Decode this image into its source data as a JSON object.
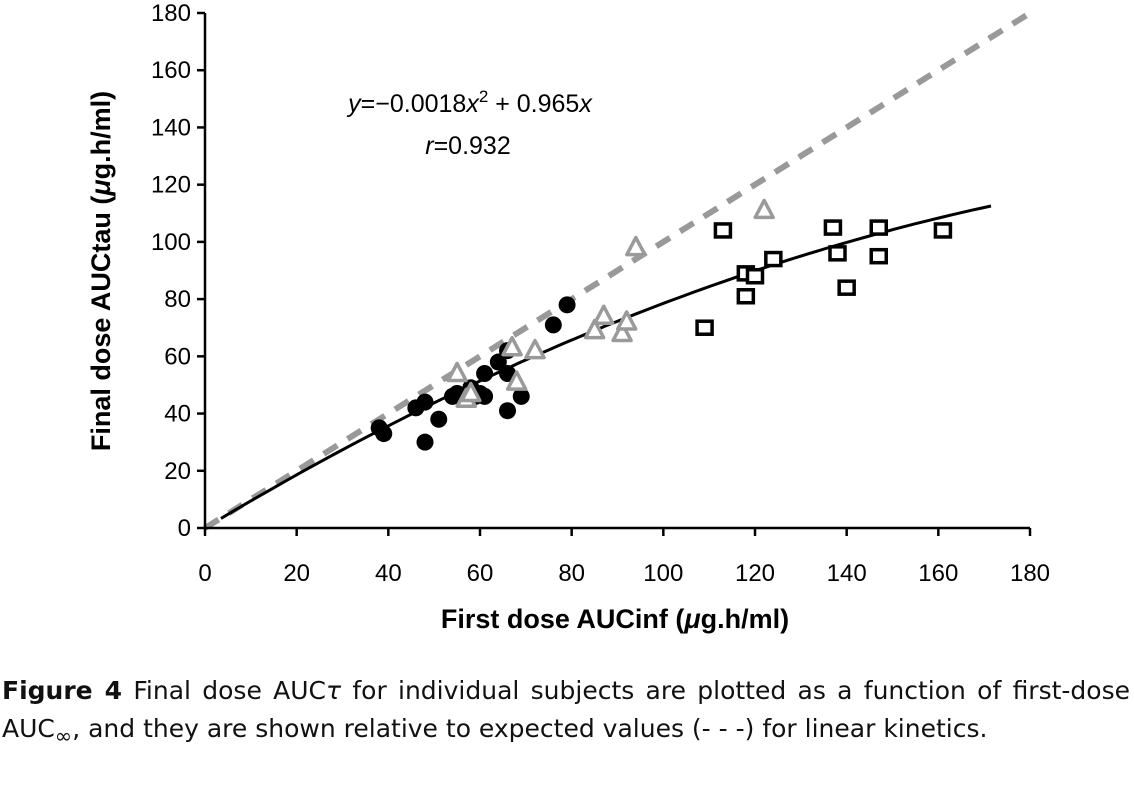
{
  "chart_data": {
    "type": "scatter",
    "xlabel_prefix": "First dose AUCinf (",
    "xlabel_mu": "μ",
    "xlabel_suffix": "g.h/ml)",
    "ylabel_prefix": "Final dose AUCtau (",
    "ylabel_mu": "μ",
    "ylabel_suffix": "g.h/ml)",
    "xlim": [
      0,
      180
    ],
    "ylim": [
      0,
      180
    ],
    "xticks": [
      0,
      20,
      40,
      60,
      80,
      100,
      120,
      140,
      160,
      180
    ],
    "yticks": [
      0,
      20,
      40,
      60,
      80,
      100,
      120,
      140,
      160,
      180
    ],
    "grid": false,
    "equation": {
      "y": "y",
      "eq": "=−0.0018",
      "x2": "x",
      "sup": "2",
      "plus": " + 0.965",
      "x": "x",
      "r_label": "r",
      "r_value": "=0.932"
    },
    "fit": {
      "a": -0.0018,
      "b": 0.965,
      "x_range": [
        3.5,
        171.5
      ],
      "color": "#000000"
    },
    "identity_line": {
      "x_range": [
        0,
        180
      ],
      "color": "#999999",
      "style": "dashed"
    },
    "series": [
      {
        "marker": "filled-circle",
        "color": "#000000",
        "points": [
          [
            38,
            35
          ],
          [
            39,
            33
          ],
          [
            46,
            42
          ],
          [
            48,
            30
          ],
          [
            48,
            44
          ],
          [
            51,
            38
          ],
          [
            54,
            46
          ],
          [
            55,
            47
          ],
          [
            58,
            49
          ],
          [
            59,
            46
          ],
          [
            60,
            47
          ],
          [
            61,
            54
          ],
          [
            61,
            46
          ],
          [
            64,
            58
          ],
          [
            66,
            62
          ],
          [
            66,
            54
          ],
          [
            66,
            41
          ],
          [
            69,
            46
          ],
          [
            76,
            71
          ],
          [
            79,
            78
          ]
        ]
      },
      {
        "marker": "open-triangle",
        "color": "#9a9a9a",
        "points": [
          [
            55,
            54
          ],
          [
            57,
            45
          ],
          [
            58,
            47
          ],
          [
            67,
            63
          ],
          [
            68,
            51
          ],
          [
            72,
            62
          ],
          [
            85,
            69
          ],
          [
            87,
            74
          ],
          [
            91,
            68
          ],
          [
            92,
            72
          ],
          [
            94,
            98
          ],
          [
            122,
            111
          ]
        ]
      },
      {
        "marker": "open-square",
        "color": "#000000",
        "points": [
          [
            109,
            70
          ],
          [
            113,
            104
          ],
          [
            118,
            89
          ],
          [
            118,
            81
          ],
          [
            120,
            88
          ],
          [
            124,
            94
          ],
          [
            137,
            105
          ],
          [
            138,
            96
          ],
          [
            140,
            84
          ],
          [
            147,
            105
          ],
          [
            147,
            95
          ],
          [
            161,
            104
          ]
        ]
      }
    ]
  },
  "caption": {
    "figure_label": "Figure 4",
    "text_1": "  Final dose AUC",
    "tau": "τ",
    "text_2": " for individual subjects are plotted as a function of first-dose AUC",
    "infinity": "∞",
    "text_3": ", and they are shown relative to expected values (- - -) for linear kinetics."
  }
}
